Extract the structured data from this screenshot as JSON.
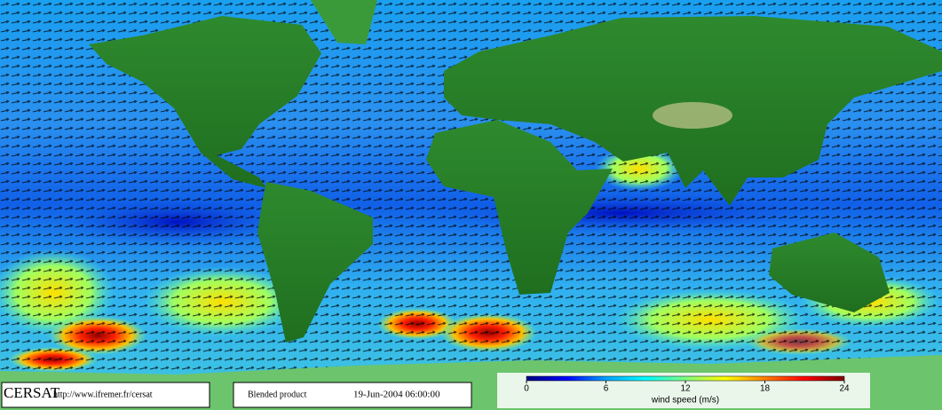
{
  "footer": {
    "logo": "CERSAT",
    "url": "http://www.ifremer.fr/cersat",
    "product": "Blended product",
    "date": "19-Jun-2004 06:00:00"
  },
  "colorbar": {
    "lim": [
      0,
      24
    ],
    "ticks": [
      0,
      6,
      12,
      18,
      24
    ],
    "label": "wind speed (m/s)",
    "colors": [
      "#000080",
      "#0000ff",
      "#00a0ff",
      "#00ffff",
      "#80ff80",
      "#ffff00",
      "#ff8000",
      "#ff0000",
      "#800000"
    ]
  }
}
